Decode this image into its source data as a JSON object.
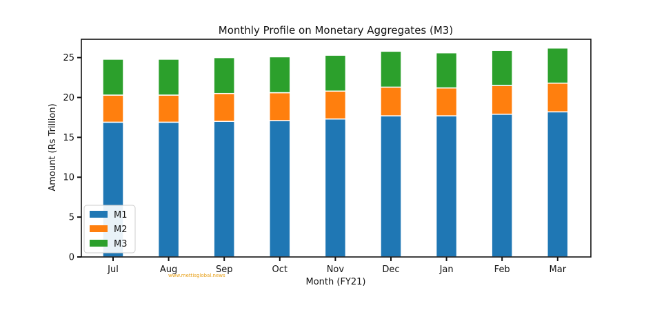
{
  "chart_data": {
    "type": "bar",
    "stacked": true,
    "title": "Monthly Profile on Monetary Aggregates (M3)",
    "xlabel": "Month (FY21)",
    "ylabel": "Amount (Rs Trillion)",
    "ylim": [
      0,
      27.3
    ],
    "yticks": [
      "0",
      "5",
      "10",
      "15",
      "20",
      "25"
    ],
    "categories": [
      "Jul",
      "Aug",
      "Sep",
      "Oct",
      "Nov",
      "Dec",
      "Jan",
      "Feb",
      "Mar"
    ],
    "series": [
      {
        "name": "M1",
        "color": "#1f77b4",
        "values": [
          16.9,
          16.9,
          17.0,
          17.1,
          17.3,
          17.7,
          17.7,
          17.9,
          18.2
        ]
      },
      {
        "name": "M2",
        "color": "#ff7f0e",
        "values": [
          3.4,
          3.4,
          3.5,
          3.5,
          3.5,
          3.6,
          3.5,
          3.6,
          3.6
        ]
      },
      {
        "name": "M3",
        "color": "#2ca02c",
        "values": [
          4.5,
          4.5,
          4.5,
          4.5,
          4.5,
          4.5,
          4.4,
          4.4,
          4.4
        ]
      }
    ],
    "legend_position": "lower-left",
    "grid": false
  },
  "watermark": "www.mettisglobal.news"
}
